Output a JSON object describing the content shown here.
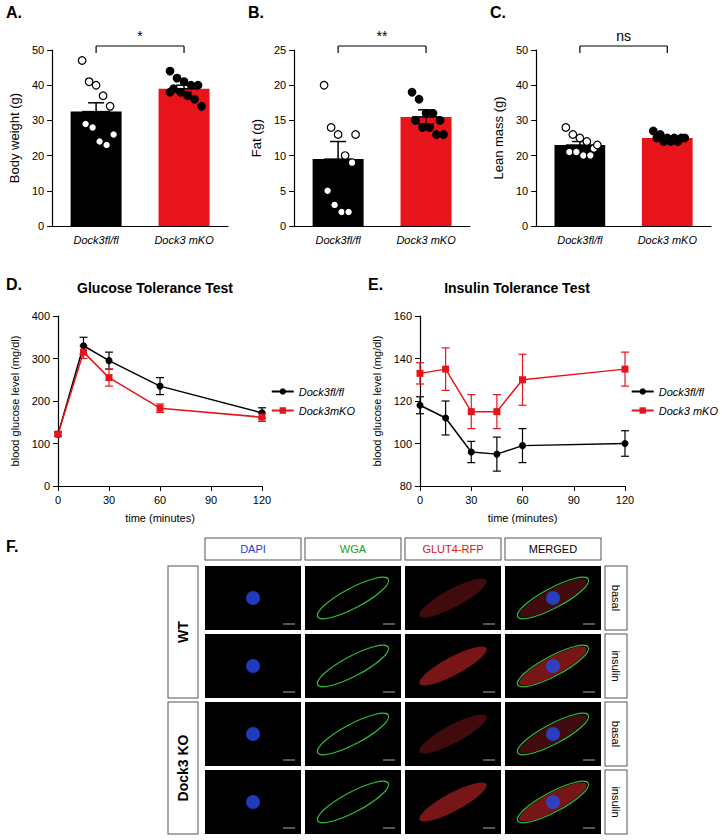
{
  "chart_data": [
    {
      "panel": "A.",
      "type": "bar",
      "categories": [
        "Dock3fl/fl",
        "Dock3 mKO"
      ],
      "values": [
        32.5,
        39
      ],
      "errors": [
        2.5,
        1
      ],
      "colors": [
        "#000000",
        "#e8141c"
      ],
      "points": [
        [
          47,
          41,
          40,
          37,
          34,
          29,
          28,
          24,
          23,
          26
        ],
        [
          44,
          42,
          41,
          40,
          40,
          39,
          38,
          37,
          36,
          34,
          38
        ]
      ],
      "ylabel": "Body weight (g)",
      "ylim": [
        0,
        50
      ],
      "yticks": [
        0,
        10,
        20,
        30,
        40,
        50
      ],
      "annotation": "*",
      "grid": false
    },
    {
      "panel": "B.",
      "type": "bar",
      "categories": [
        "Dock3fl/fl",
        "Dock3 mKO"
      ],
      "values": [
        9.5,
        15.5
      ],
      "errors": [
        2.5,
        1
      ],
      "colors": [
        "#000000",
        "#e8141c"
      ],
      "points": [
        [
          20,
          14,
          13,
          10,
          9,
          5,
          3,
          2,
          2,
          13
        ],
        [
          19,
          18,
          16,
          16,
          15,
          15,
          14,
          14,
          13,
          13
        ]
      ],
      "ylabel": "Fat (g)",
      "ylim": [
        0,
        25
      ],
      "yticks": [
        0,
        5,
        10,
        15,
        20,
        25
      ],
      "annotation": "**",
      "grid": false
    },
    {
      "panel": "C.",
      "type": "bar",
      "categories": [
        "Dock3fl/fl",
        "Dock3 mKO"
      ],
      "values": [
        23,
        25
      ],
      "errors": [
        1,
        0.3
      ],
      "colors": [
        "#000000",
        "#e8141c"
      ],
      "points": [
        [
          28,
          26,
          25,
          24,
          22,
          21,
          21,
          20,
          20,
          23
        ],
        [
          27,
          26,
          25,
          25,
          25,
          25,
          24,
          24,
          24,
          25
        ]
      ],
      "ylabel": "Lean mass (g)",
      "ylim": [
        0,
        50
      ],
      "yticks": [
        0,
        10,
        20,
        30,
        40,
        50
      ],
      "annotation": "ns",
      "grid": false
    },
    {
      "panel": "D.",
      "type": "line",
      "title": "Glucose Tolerance Test",
      "x": [
        0,
        15,
        30,
        60,
        120
      ],
      "series": [
        {
          "name": "Dock3fl/fl",
          "color": "#000000",
          "marker": "circle",
          "values": [
            122,
            330,
            295,
            235,
            172
          ],
          "errors": [
            5,
            20,
            20,
            20,
            12
          ]
        },
        {
          "name": "Dock3mKO",
          "color": "#e8141c",
          "marker": "rect",
          "values": [
            122,
            315,
            255,
            183,
            162
          ],
          "errors": [
            5,
            15,
            20,
            10,
            10
          ]
        }
      ],
      "xlabel": "time (minutes)",
      "ylabel": "blood glucose level (mg/dl)",
      "xlim": [
        0,
        120
      ],
      "xticks": [
        0,
        30,
        60,
        90,
        120
      ],
      "ylim": [
        0,
        400
      ],
      "yticks": [
        0,
        100,
        200,
        300,
        400
      ],
      "legend": "right",
      "grid": false
    },
    {
      "panel": "E.",
      "type": "line",
      "title": "Insulin Tolerance Test",
      "x": [
        0,
        15,
        30,
        45,
        60,
        120
      ],
      "series": [
        {
          "name": "Dock3fl/fl",
          "color": "#000000",
          "marker": "circle",
          "values": [
            118,
            112,
            96,
            95,
            99,
            100
          ],
          "errors": [
            4,
            8,
            5,
            8,
            8,
            6
          ]
        },
        {
          "name": "Dock3 mKO",
          "color": "#e8141c",
          "marker": "rect",
          "values": [
            133,
            135,
            115,
            115,
            130,
            135
          ],
          "errors": [
            5,
            10,
            8,
            8,
            12,
            8
          ]
        }
      ],
      "xlabel": "time (minutes)",
      "ylabel": "blood glucose level (mg/dl)",
      "xlim": [
        0,
        120
      ],
      "xticks": [
        0,
        30,
        60,
        90,
        120
      ],
      "ylim": [
        80,
        160
      ],
      "yticks": [
        80,
        100,
        120,
        140,
        160
      ],
      "legend": "right",
      "grid": false
    }
  ],
  "panel_f": {
    "panel": "F.",
    "columns": [
      "DAPI",
      "WGA",
      "GLUT4-RFP",
      "MERGED"
    ],
    "groups": [
      {
        "label": "WT",
        "rows": [
          "basal",
          "insulin"
        ]
      },
      {
        "label": "Dock3 KO",
        "rows": [
          "basal",
          "insulin"
        ]
      }
    ]
  }
}
